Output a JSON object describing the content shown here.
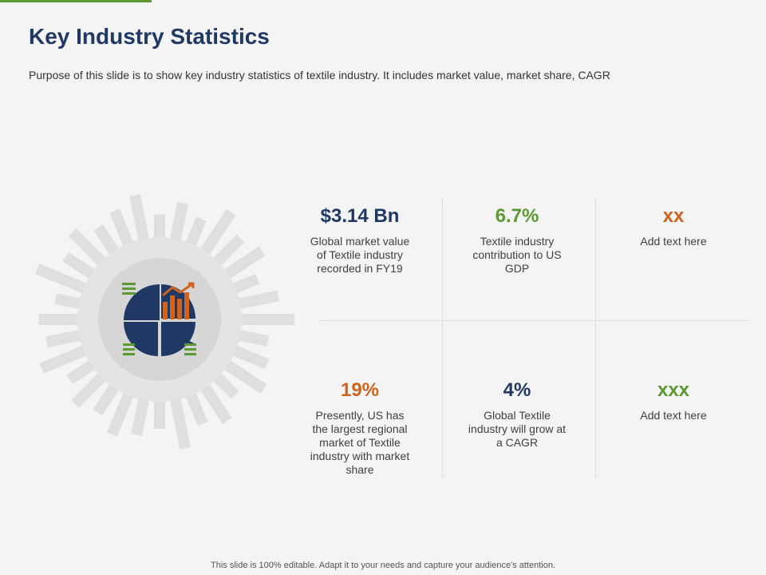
{
  "slide": {
    "title": "Key Industry Statistics",
    "subtitle": "Purpose of this slide is to show key industry statistics of textile industry. It includes market value, market share, CAGR",
    "footer": "This slide is 100% editable. Adapt it to your needs and capture your audience's attention."
  },
  "colors": {
    "accent_green": "#5b9a32",
    "navy": "#1f3864",
    "orange": "#d0641f"
  },
  "icon": "pie-chart-bar-chart-icon",
  "stats": [
    {
      "value": "$3.14 Bn",
      "desc": "Global market value of Textile industry recorded in FY19",
      "color": "#1f3864"
    },
    {
      "value": "6.7%",
      "desc": "Textile industry contribution to US GDP",
      "color": "#5b9a32"
    },
    {
      "value": "xx",
      "desc": "Add text here",
      "color": "#d0641f"
    },
    {
      "value": "19%",
      "desc": "Presently, US has the largest regional market of Textile industry with market share",
      "color": "#d0641f"
    },
    {
      "value": "4%",
      "desc": "Global Textile industry will grow at a CAGR",
      "color": "#1f3864"
    },
    {
      "value": "xxx",
      "desc": "Add text here",
      "color": "#5b9a32"
    }
  ]
}
